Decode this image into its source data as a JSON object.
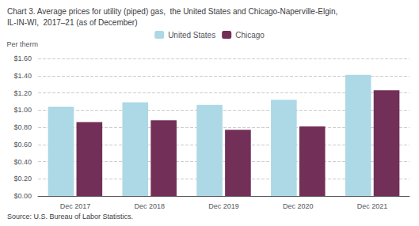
{
  "chart_data": {
    "type": "bar",
    "title": "Chart 3. Average prices for utility (piped) gas,  the United States and Chicago-Naperville-Elgin,",
    "subtitle": "IL-IN-WI,  2017–21 (as of December)",
    "ylabel": "Per therm",
    "source": "Source: U.S. Bureau of Labor Statistics.",
    "categories": [
      "Dec 2017",
      "Dec 2018",
      "Dec 2019",
      "Dec 2020",
      "Dec 2021"
    ],
    "series": [
      {
        "name": "United States",
        "color": "#add8e6",
        "values": [
          1.04,
          1.09,
          1.06,
          1.12,
          1.41
        ]
      },
      {
        "name": "Chicago",
        "color": "#722f57",
        "values": [
          0.86,
          0.88,
          0.77,
          0.81,
          1.23
        ]
      }
    ],
    "ylim": [
      0.0,
      1.6
    ],
    "yticks": [
      {
        "value": 0.0,
        "label": "$0.00"
      },
      {
        "value": 0.2,
        "label": "$0.20"
      },
      {
        "value": 0.4,
        "label": "$0.40"
      },
      {
        "value": 0.6,
        "label": "$0.60"
      },
      {
        "value": 0.8,
        "label": "$0.80"
      },
      {
        "value": 1.0,
        "label": "$1.00"
      },
      {
        "value": 1.2,
        "label": "$1.20"
      },
      {
        "value": 1.4,
        "label": "$1.40"
      },
      {
        "value": 1.6,
        "label": "$1.60"
      }
    ],
    "grid": true,
    "legend": "top"
  }
}
